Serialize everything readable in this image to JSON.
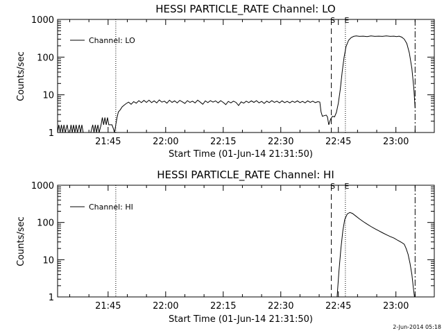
{
  "chart_data": [
    {
      "type": "line",
      "title": "HESSI PARTICLE_RATE Channel: LO",
      "xlabel": "Start Time (01-Jun-14 21:31:50)",
      "ylabel": "Counts/sec",
      "y_scale": "log",
      "ylim": [
        1,
        1000
      ],
      "xlim": [
        "21:31:50",
        "23:10:00"
      ],
      "x_ticks": [
        "21:45",
        "22:00",
        "22:15",
        "22:30",
        "22:45",
        "23:00"
      ],
      "y_ticks": [
        "1",
        "10",
        "100",
        "1000"
      ],
      "legend": {
        "position": "top-left",
        "entries": [
          "Channel: LO"
        ]
      },
      "grid": false,
      "markers": [
        {
          "time": "21:47:00",
          "label": "",
          "style": "dotted"
        },
        {
          "time": "22:43:10",
          "label": "S",
          "style": "dashed"
        },
        {
          "time": "22:46:50",
          "label": "E",
          "style": "dotted"
        },
        {
          "time": "23:05:00",
          "label": "",
          "style": "dash-dot"
        }
      ],
      "series": [
        {
          "name": "Channel: LO",
          "points": [
            [
              "21:31:50",
              1
            ],
            [
              "21:32:10",
              1.6
            ],
            [
              "21:32:30",
              1
            ],
            [
              "21:32:50",
              1.6
            ],
            [
              "21:33:10",
              1
            ],
            [
              "21:33:30",
              1.6
            ],
            [
              "21:33:50",
              1
            ],
            [
              "21:34:20",
              1.6
            ],
            [
              "21:34:40",
              1
            ],
            [
              "21:35:00",
              1
            ],
            [
              "21:35:20",
              1.6
            ],
            [
              "21:35:40",
              1
            ],
            [
              "21:36:00",
              1.6
            ],
            [
              "21:36:20",
              1
            ],
            [
              "21:36:40",
              1.6
            ],
            [
              "21:37:00",
              1
            ],
            [
              "21:37:30",
              1.6
            ],
            [
              "21:37:50",
              1
            ],
            [
              "21:38:10",
              1.6
            ],
            [
              "21:38:30",
              1
            ],
            [
              "21:39:00",
              1
            ],
            [
              "21:40:30",
              1
            ],
            [
              "21:41:00",
              1.6
            ],
            [
              "21:41:20",
              1
            ],
            [
              "21:41:40",
              1.6
            ],
            [
              "21:42:00",
              1
            ],
            [
              "21:42:20",
              1.6
            ],
            [
              "21:42:40",
              1
            ],
            [
              "21:43:10",
              1.6
            ],
            [
              "21:43:30",
              2.5
            ],
            [
              "21:43:50",
              1.6
            ],
            [
              "21:44:10",
              2.5
            ],
            [
              "21:44:30",
              1.6
            ],
            [
              "21:44:50",
              2.5
            ],
            [
              "21:45:10",
              1.6
            ],
            [
              "21:45:30",
              1.6
            ],
            [
              "21:46:00",
              1.6
            ],
            [
              "21:46:20",
              1.3
            ],
            [
              "21:46:40",
              1
            ],
            [
              "21:47:00",
              1.6
            ],
            [
              "21:47:20",
              2.5
            ],
            [
              "21:47:40",
              3.5
            ],
            [
              "21:48:10",
              4
            ],
            [
              "21:48:40",
              4.8
            ],
            [
              "21:49:10",
              5.3
            ],
            [
              "21:49:40",
              5.8
            ],
            [
              "21:50:20",
              6.4
            ],
            [
              "21:51:00",
              5.6
            ],
            [
              "21:51:40",
              6.6
            ],
            [
              "21:52:20",
              6
            ],
            [
              "21:53:00",
              7
            ],
            [
              "21:53:40",
              6.2
            ],
            [
              "21:54:20",
              7.1
            ],
            [
              "21:55:00",
              6.3
            ],
            [
              "21:55:40",
              7.2
            ],
            [
              "21:56:20",
              6.2
            ],
            [
              "21:57:00",
              6.9
            ],
            [
              "21:57:40",
              6.1
            ],
            [
              "21:58:20",
              7.3
            ],
            [
              "21:59:00",
              6.4
            ],
            [
              "21:59:40",
              6.8
            ],
            [
              "22:00:20",
              6
            ],
            [
              "22:01:00",
              7.2
            ],
            [
              "22:01:40",
              6.3
            ],
            [
              "22:02:20",
              6.9
            ],
            [
              "22:03:00",
              6.1
            ],
            [
              "22:03:40",
              7.1
            ],
            [
              "22:04:20",
              6.5
            ],
            [
              "22:05:00",
              5.9
            ],
            [
              "22:05:40",
              7
            ],
            [
              "22:06:20",
              6.3
            ],
            [
              "22:07:00",
              6.8
            ],
            [
              "22:07:40",
              6.1
            ],
            [
              "22:08:20",
              7.2
            ],
            [
              "22:09:00",
              6.4
            ],
            [
              "22:09:40",
              5.6
            ],
            [
              "22:10:20",
              6.9
            ],
            [
              "22:11:00",
              6.2
            ],
            [
              "22:11:40",
              7
            ],
            [
              "22:12:20",
              6.4
            ],
            [
              "22:13:00",
              6.9
            ],
            [
              "22:13:40",
              6.1
            ],
            [
              "22:14:20",
              7
            ],
            [
              "22:15:00",
              6.3
            ],
            [
              "22:15:40",
              5.5
            ],
            [
              "22:16:20",
              6.7
            ],
            [
              "22:17:00",
              6.1
            ],
            [
              "22:17:40",
              6.8
            ],
            [
              "22:18:20",
              6.3
            ],
            [
              "22:19:00",
              5.2
            ],
            [
              "22:19:40",
              6.5
            ],
            [
              "22:20:20",
              6
            ],
            [
              "22:21:00",
              6.8
            ],
            [
              "22:21:40",
              6.2
            ],
            [
              "22:22:20",
              6.9
            ],
            [
              "22:23:00",
              6.3
            ],
            [
              "22:23:40",
              7
            ],
            [
              "22:24:20",
              6.1
            ],
            [
              "22:25:00",
              6.7
            ],
            [
              "22:25:40",
              5.9
            ],
            [
              "22:26:20",
              6.8
            ],
            [
              "22:27:00",
              6.2
            ],
            [
              "22:27:40",
              7
            ],
            [
              "22:28:20",
              6.3
            ],
            [
              "22:29:00",
              6.8
            ],
            [
              "22:29:40",
              6.1
            ],
            [
              "22:30:20",
              6.9
            ],
            [
              "22:31:00",
              6.2
            ],
            [
              "22:31:40",
              6.7
            ],
            [
              "22:32:20",
              6.1
            ],
            [
              "22:33:00",
              6.8
            ],
            [
              "22:33:40",
              6.3
            ],
            [
              "22:34:20",
              6.9
            ],
            [
              "22:35:00",
              6.2
            ],
            [
              "22:35:40",
              6.7
            ],
            [
              "22:36:20",
              6.1
            ],
            [
              "22:37:00",
              6.9
            ],
            [
              "22:37:40",
              6.3
            ],
            [
              "22:38:20",
              6.8
            ],
            [
              "22:39:00",
              6.2
            ],
            [
              "22:39:40",
              6.6
            ],
            [
              "22:40:10",
              6.4
            ],
            [
              "22:40:30",
              3.5
            ],
            [
              "22:40:50",
              2.7
            ],
            [
              "22:41:20",
              2.8
            ],
            [
              "22:41:50",
              2.9
            ],
            [
              "22:42:10",
              2.6
            ],
            [
              "22:42:30",
              1.6
            ],
            [
              "22:43:00",
              2.3
            ],
            [
              "22:43:30",
              2.7
            ],
            [
              "22:44:00",
              2.6
            ],
            [
              "22:44:30",
              3.4
            ],
            [
              "22:45:00",
              6
            ],
            [
              "22:45:30",
              14
            ],
            [
              "22:46:00",
              40
            ],
            [
              "22:46:30",
              100
            ],
            [
              "22:47:00",
              190
            ],
            [
              "22:47:40",
              280
            ],
            [
              "22:48:20",
              330
            ],
            [
              "22:49:00",
              355
            ],
            [
              "22:49:40",
              365
            ],
            [
              "22:50:30",
              355
            ],
            [
              "22:51:30",
              360
            ],
            [
              "22:52:30",
              350
            ],
            [
              "22:53:30",
              365
            ],
            [
              "22:54:30",
              355
            ],
            [
              "22:55:30",
              360
            ],
            [
              "22:56:30",
              355
            ],
            [
              "22:57:30",
              365
            ],
            [
              "22:58:30",
              355
            ],
            [
              "22:59:30",
              360
            ],
            [
              "23:00:10",
              350
            ],
            [
              "23:00:50",
              360
            ],
            [
              "23:01:30",
              340
            ],
            [
              "23:02:10",
              300
            ],
            [
              "23:02:50",
              230
            ],
            [
              "23:03:30",
              130
            ],
            [
              "23:04:10",
              50
            ],
            [
              "23:04:40",
              15
            ],
            [
              "23:05:00",
              4.5
            ]
          ]
        }
      ]
    },
    {
      "type": "line",
      "title": "HESSI PARTICLE_RATE Channel: HI",
      "xlabel": "Start Time (01-Jun-14 21:31:50)",
      "ylabel": "Counts/sec",
      "y_scale": "log",
      "ylim": [
        1,
        1000
      ],
      "xlim": [
        "21:31:50",
        "23:10:00"
      ],
      "x_ticks": [
        "21:45",
        "22:00",
        "22:15",
        "22:30",
        "22:45",
        "23:00"
      ],
      "y_ticks": [
        "1",
        "10",
        "100",
        "1000"
      ],
      "legend": {
        "position": "top-left",
        "entries": [
          "Channel: HI"
        ]
      },
      "grid": false,
      "markers": [
        {
          "time": "21:47:00",
          "label": "",
          "style": "dotted"
        },
        {
          "time": "22:43:10",
          "label": "S",
          "style": "dashed"
        },
        {
          "time": "22:46:50",
          "label": "E",
          "style": "dotted"
        },
        {
          "time": "23:05:00",
          "label": "",
          "style": "dash-dot"
        }
      ],
      "series": [
        {
          "name": "Channel: HI",
          "points": [
            [
              "22:44:40",
              1
            ],
            [
              "22:45:10",
              5
            ],
            [
              "22:45:40",
              20
            ],
            [
              "22:46:10",
              60
            ],
            [
              "22:46:40",
              120
            ],
            [
              "22:47:20",
              170
            ],
            [
              "22:48:00",
              185
            ],
            [
              "22:48:40",
              175
            ],
            [
              "22:49:30",
              150
            ],
            [
              "22:50:30",
              125
            ],
            [
              "22:51:30",
              105
            ],
            [
              "22:52:30",
              90
            ],
            [
              "22:53:30",
              78
            ],
            [
              "22:54:30",
              68
            ],
            [
              "22:55:30",
              60
            ],
            [
              "22:56:30",
              53
            ],
            [
              "22:57:30",
              47
            ],
            [
              "22:58:30",
              42
            ],
            [
              "22:59:30",
              38
            ],
            [
              "23:00:30",
              33
            ],
            [
              "23:01:30",
              29
            ],
            [
              "23:02:10",
              26
            ],
            [
              "23:02:40",
              20
            ],
            [
              "23:03:10",
              14
            ],
            [
              "23:03:40",
              8
            ],
            [
              "23:04:10",
              4
            ],
            [
              "23:04:30",
              1.9
            ],
            [
              "23:04:50",
              1
            ]
          ]
        }
      ]
    }
  ],
  "footer": {
    "timestamp": "2-Jun-2014 05:18"
  }
}
